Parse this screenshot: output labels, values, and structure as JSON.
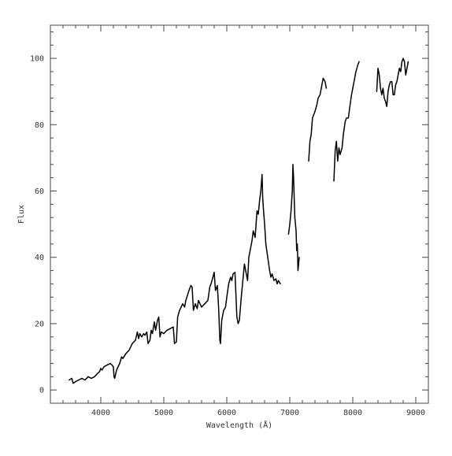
{
  "chart_data": {
    "type": "line",
    "title": "",
    "xlabel": "Wavelength (Å)",
    "ylabel": "Flux",
    "xlim": [
      3200,
      9200
    ],
    "ylim": [
      -4,
      110
    ],
    "x_ticks": [
      4000,
      5000,
      6000,
      7000,
      8000,
      9000
    ],
    "y_ticks": [
      0,
      20,
      40,
      60,
      80,
      100
    ],
    "grid": false,
    "legend": "none",
    "line_color": "#000000",
    "series": [
      {
        "values": [
          [
            3500,
            3
          ],
          [
            3540,
            3.5
          ],
          [
            3560,
            2
          ],
          [
            3600,
            2.5
          ],
          [
            3650,
            3
          ],
          [
            3700,
            3.5
          ],
          [
            3750,
            3
          ],
          [
            3800,
            4
          ],
          [
            3850,
            3.5
          ],
          [
            3900,
            4
          ],
          [
            3950,
            5
          ],
          [
            3980,
            5.5
          ],
          [
            4000,
            6.5
          ],
          [
            4020,
            6
          ],
          [
            4050,
            7
          ],
          [
            4100,
            7.5
          ],
          [
            4150,
            8
          ],
          [
            4180,
            7.5
          ],
          [
            4200,
            7
          ],
          [
            4210,
            4
          ],
          [
            4220,
            3.5
          ],
          [
            4250,
            6
          ],
          [
            4300,
            8
          ],
          [
            4330,
            10
          ],
          [
            4350,
            9.5
          ],
          [
            4400,
            11
          ],
          [
            4450,
            12
          ],
          [
            4500,
            14
          ],
          [
            4550,
            15
          ],
          [
            4580,
            17.5
          ],
          [
            4600,
            15.5
          ],
          [
            4620,
            17
          ],
          [
            4650,
            16
          ],
          [
            4680,
            17
          ],
          [
            4700,
            16.5
          ],
          [
            4730,
            17.5
          ],
          [
            4750,
            14
          ],
          [
            4780,
            15
          ],
          [
            4800,
            18
          ],
          [
            4820,
            17
          ],
          [
            4850,
            20.5
          ],
          [
            4870,
            18
          ],
          [
            4900,
            21
          ],
          [
            4920,
            22
          ],
          [
            4940,
            16
          ],
          [
            4960,
            17.5
          ],
          [
            5000,
            17
          ],
          [
            5050,
            18
          ],
          [
            5100,
            18.5
          ],
          [
            5150,
            19
          ],
          [
            5170,
            14
          ],
          [
            5200,
            14.5
          ],
          [
            5220,
            22
          ],
          [
            5250,
            24
          ],
          [
            5300,
            26
          ],
          [
            5330,
            25
          ],
          [
            5350,
            27
          ],
          [
            5400,
            30
          ],
          [
            5430,
            31.5
          ],
          [
            5450,
            31
          ],
          [
            5470,
            24
          ],
          [
            5500,
            26
          ],
          [
            5530,
            24.5
          ],
          [
            5550,
            27
          ],
          [
            5600,
            25
          ],
          [
            5650,
            26
          ],
          [
            5700,
            27
          ],
          [
            5730,
            31
          ],
          [
            5750,
            32
          ],
          [
            5780,
            34
          ],
          [
            5800,
            35.5
          ],
          [
            5820,
            30
          ],
          [
            5850,
            31.5
          ],
          [
            5870,
            25
          ],
          [
            5890,
            15
          ],
          [
            5900,
            14
          ],
          [
            5920,
            21
          ],
          [
            5950,
            24
          ],
          [
            5980,
            25
          ],
          [
            6000,
            28
          ],
          [
            6030,
            32
          ],
          [
            6060,
            34
          ],
          [
            6080,
            33
          ],
          [
            6100,
            35
          ],
          [
            6130,
            35.5
          ],
          [
            6160,
            22
          ],
          [
            6180,
            20
          ],
          [
            6200,
            21
          ],
          [
            6230,
            28
          ],
          [
            6260,
            34
          ],
          [
            6280,
            38
          ],
          [
            6300,
            36
          ],
          [
            6330,
            33
          ],
          [
            6350,
            40
          ],
          [
            6380,
            43
          ],
          [
            6400,
            45
          ],
          [
            6420,
            48
          ],
          [
            6450,
            46
          ],
          [
            6480,
            54
          ],
          [
            6500,
            53
          ],
          [
            6520,
            57
          ],
          [
            6540,
            60
          ],
          [
            6560,
            65
          ],
          [
            6570,
            58
          ],
          [
            6580,
            55
          ],
          [
            6600,
            50
          ],
          [
            6620,
            44
          ],
          [
            6650,
            40
          ],
          [
            6680,
            36
          ],
          [
            6700,
            34
          ],
          [
            6720,
            35
          ],
          [
            6750,
            33
          ],
          [
            6780,
            33.5
          ],
          [
            6800,
            32
          ],
          [
            6820,
            33
          ],
          [
            6850,
            32
          ]
        ]
      },
      {
        "values": [
          [
            6980,
            47
          ],
          [
            7000,
            50
          ],
          [
            7020,
            54
          ],
          [
            7040,
            60
          ],
          [
            7050,
            68
          ],
          [
            7060,
            64
          ],
          [
            7070,
            58
          ],
          [
            7080,
            52
          ],
          [
            7090,
            50
          ],
          [
            7100,
            48
          ],
          [
            7110,
            42
          ],
          [
            7120,
            44
          ],
          [
            7130,
            36
          ],
          [
            7140,
            38
          ],
          [
            7150,
            40
          ]
        ]
      },
      {
        "values": [
          [
            7300,
            69
          ],
          [
            7320,
            75
          ],
          [
            7340,
            77
          ],
          [
            7360,
            82
          ],
          [
            7400,
            84
          ],
          [
            7430,
            86
          ],
          [
            7450,
            88
          ],
          [
            7480,
            89
          ],
          [
            7500,
            91
          ],
          [
            7530,
            94
          ],
          [
            7560,
            93
          ],
          [
            7580,
            91
          ]
        ]
      },
      {
        "values": [
          [
            7700,
            63
          ],
          [
            7720,
            72
          ],
          [
            7740,
            75
          ],
          [
            7760,
            69
          ],
          [
            7780,
            73
          ],
          [
            7800,
            71
          ],
          [
            7830,
            73
          ],
          [
            7850,
            77
          ],
          [
            7880,
            81
          ],
          [
            7900,
            82
          ],
          [
            7930,
            82
          ],
          [
            7950,
            85
          ],
          [
            7980,
            89
          ],
          [
            8000,
            91
          ],
          [
            8030,
            94
          ],
          [
            8050,
            96
          ],
          [
            8080,
            98
          ],
          [
            8100,
            99
          ]
        ]
      },
      {
        "values": [
          [
            8380,
            90
          ],
          [
            8400,
            97
          ],
          [
            8420,
            95
          ],
          [
            8440,
            91
          ],
          [
            8460,
            89
          ],
          [
            8480,
            91
          ],
          [
            8500,
            88
          ],
          [
            8520,
            87
          ],
          [
            8540,
            85.5
          ],
          [
            8560,
            90
          ],
          [
            8580,
            92
          ],
          [
            8600,
            93
          ],
          [
            8620,
            93
          ],
          [
            8640,
            89
          ],
          [
            8660,
            89
          ],
          [
            8680,
            92
          ],
          [
            8700,
            93
          ],
          [
            8720,
            95
          ],
          [
            8740,
            97
          ],
          [
            8760,
            96
          ],
          [
            8780,
            99
          ],
          [
            8800,
            100
          ],
          [
            8820,
            99
          ],
          [
            8840,
            95
          ],
          [
            8860,
            97
          ],
          [
            8880,
            99
          ]
        ]
      }
    ]
  }
}
